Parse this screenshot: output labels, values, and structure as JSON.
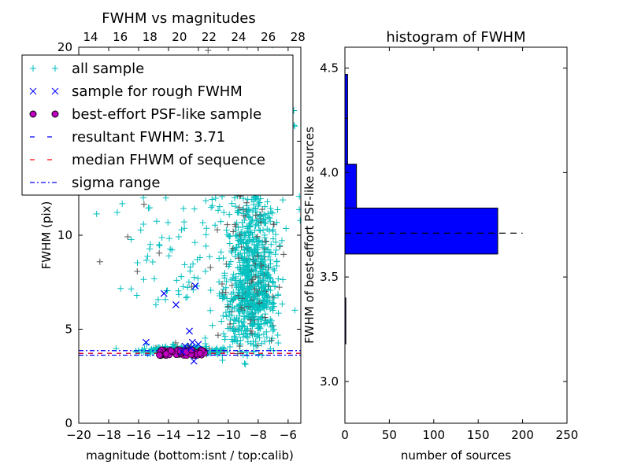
{
  "chart_data": [
    {
      "type": "scatter",
      "title": "FWHM vs magnitudes",
      "xlabel": "magnitude (bottom:isnt / top:calib)",
      "ylabel": "FWHM (pix)",
      "xlim": [
        -20,
        -5.15
      ],
      "ylim": [
        0,
        20
      ],
      "top_xlim": [
        13.2,
        28.2
      ],
      "xticks": [
        "-20",
        "-18",
        "-16",
        "-14",
        "-12",
        "-10",
        "-8",
        "-6"
      ],
      "xtick_values": [
        -20,
        -18,
        -16,
        -14,
        -12,
        -10,
        -8,
        -6
      ],
      "top_xticks": [
        "14",
        "16",
        "18",
        "20",
        "22",
        "24",
        "26",
        "28"
      ],
      "top_xtick_values": [
        14,
        16,
        18,
        20,
        22,
        24,
        26,
        28
      ],
      "yticks": [
        "0",
        "5",
        "10",
        "15",
        "20"
      ],
      "ytick_values": [
        0,
        5,
        10,
        15,
        20
      ],
      "legend_position": "upper-left",
      "legend": [
        {
          "label": "all sample",
          "marker": "+",
          "color": "#00bfbf"
        },
        {
          "label": "sample for rough FWHM",
          "marker": "x",
          "color": "#0000ff"
        },
        {
          "label": "best-effort PSF-like sample",
          "marker": "o",
          "color": "#bf00bf"
        },
        {
          "label": "resultant FWHM: 3.71",
          "marker": "--",
          "color": "#0000ff"
        },
        {
          "label": "median FHWM of sequence",
          "marker": "--",
          "color": "#ff0000"
        },
        {
          "label": "sigma range",
          "marker": "-.",
          "color": "#0000ff"
        }
      ],
      "resultant_fwhm": 3.71,
      "median_fwhm": 3.72,
      "sigma_range": [
        3.62,
        3.86
      ],
      "rough_sample": [
        [
          -15.5,
          4.3
        ],
        [
          -14.3,
          6.9
        ],
        [
          -13.5,
          6.3
        ],
        [
          -12.2,
          7.3
        ],
        [
          -12.9,
          4.1
        ],
        [
          -12.6,
          4.9
        ],
        [
          -12.4,
          4.3
        ],
        [
          -12.5,
          4.0
        ],
        [
          -12.3,
          3.3
        ],
        [
          -13.1,
          3.8
        ],
        [
          -12.0,
          4.2
        ]
      ],
      "psf_sample_range": {
        "mag": [
          -14.6,
          -11.6
        ],
        "fwhm": [
          3.6,
          3.9
        ]
      },
      "all_sample_clusters": [
        {
          "mag_center": -8.5,
          "mag_spread": 0.9,
          "fwhm_center": 6.5,
          "fwhm_spread": 3.2,
          "n": 900
        },
        {
          "mag_center": -13,
          "mag_spread": 1.5,
          "fwhm_center": 3.8,
          "fwhm_spread": 0.15,
          "n": 250
        },
        {
          "mag_center": -13.5,
          "mag_spread": 2,
          "fwhm_center": 8,
          "fwhm_spread": 3,
          "n": 90
        },
        {
          "mag_center": -9,
          "mag_spread": 2.5,
          "fwhm_center": 13,
          "fwhm_spread": 4,
          "n": 120
        }
      ]
    },
    {
      "type": "bar",
      "orientation": "horizontal",
      "title": "histogram of FWHM",
      "xlabel": "number of sources",
      "ylabel": "FWHM of best-effort PSF-like sources",
      "xlim": [
        0,
        250
      ],
      "ylim": [
        2.8,
        4.6
      ],
      "xticks": [
        "0",
        "50",
        "100",
        "150",
        "200",
        "250"
      ],
      "xtick_values": [
        0,
        50,
        100,
        150,
        200,
        250
      ],
      "yticks": [
        "3.0",
        "3.5",
        "4.0",
        "4.5"
      ],
      "ytick_values": [
        3.0,
        3.5,
        4.0,
        4.5
      ],
      "bin_edges": [
        3.18,
        3.4,
        3.61,
        3.83,
        4.04,
        4.26,
        4.47
      ],
      "counts": [
        1,
        0,
        172,
        13,
        3,
        3
      ],
      "bar_color": "#0000ff",
      "reference_line": {
        "value": 3.71,
        "extent": 200,
        "style": "dashed",
        "color": "#000000"
      }
    }
  ]
}
